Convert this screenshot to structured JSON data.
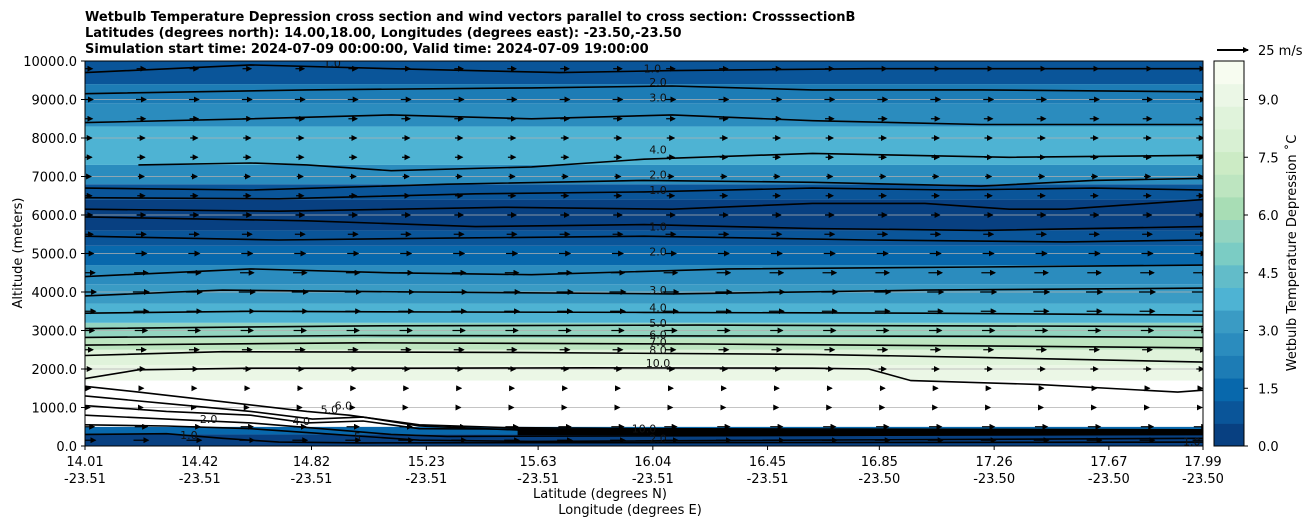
{
  "chart_data": {
    "type": "contour",
    "title_lines": [
      "Wetbulb Temperature Depression cross section and wind vectors parallel to cross section: CrosssectionB",
      "Latitudes (degrees north): 14.00,18.00, Longitudes (degrees east): -23.50,-23.50",
      "Simulation start time: 2024-07-09 00:00:00, Valid time: 2024-07-09 19:00:00"
    ],
    "ylabel": "Altitude (meters)",
    "xlabel_lat": "Latitude (degrees N)",
    "xlabel_lon": "Longitude (degrees E)",
    "ylim": [
      0,
      10000
    ],
    "yticks": [
      "0.0",
      "1000.0",
      "2000.0",
      "3000.0",
      "4000.0",
      "5000.0",
      "6000.0",
      "7000.0",
      "8000.0",
      "9000.0",
      "10000.0"
    ],
    "xticks": [
      {
        "lat": "14.01",
        "lon": "-23.51",
        "frac": 0.0
      },
      {
        "lat": "14.42",
        "lon": "-23.51",
        "frac": 0.1026
      },
      {
        "lat": "14.82",
        "lon": "-23.51",
        "frac": 0.2026
      },
      {
        "lat": "15.23",
        "lon": "-23.51",
        "frac": 0.3053
      },
      {
        "lat": "15.63",
        "lon": "-23.51",
        "frac": 0.4053
      },
      {
        "lat": "16.04",
        "lon": "-23.51",
        "frac": 0.5079
      },
      {
        "lat": "16.45",
        "lon": "-23.51",
        "frac": 0.6105
      },
      {
        "lat": "16.85",
        "lon": "-23.50",
        "frac": 0.7105
      },
      {
        "lat": "17.26",
        "lon": "-23.50",
        "frac": 0.8132
      },
      {
        "lat": "17.67",
        "lon": "-23.50",
        "frac": 0.9158
      },
      {
        "lat": "17.99",
        "lon": "-23.50",
        "frac": 1.0
      }
    ],
    "colorbar": {
      "label": "Wetbulb Temperature Depression ˚C",
      "range": [
        0,
        10
      ],
      "ticks": [
        "0.0",
        "1.5",
        "3.0",
        "4.5",
        "6.0",
        "7.5",
        "9.0"
      ],
      "colors": [
        "#084081",
        "#0a5599",
        "#0868ac",
        "#1d7cb5",
        "#2b8cbe",
        "#3a9bc4",
        "#4eb3d3",
        "#62bcc9",
        "#7bccc4",
        "#93d4c0",
        "#a8ddb5",
        "#bde5c0",
        "#ccebc5",
        "#d8f0d3",
        "#e0f3db",
        "#ebf7e6",
        "#f7fcf0"
      ]
    },
    "quiver_key": {
      "label": "25 m/s",
      "speed": 25
    },
    "contour_labels": [
      {
        "text": "1.0",
        "x": 14.89,
        "z": 9950
      },
      {
        "text": "1.0",
        "x": 16.03,
        "z": 9800
      },
      {
        "text": "2.0",
        "x": 16.05,
        "z": 9450
      },
      {
        "text": "3.0",
        "x": 16.05,
        "z": 9050
      },
      {
        "text": "4.0",
        "x": 16.05,
        "z": 7700
      },
      {
        "text": "2.0",
        "x": 16.05,
        "z": 7050
      },
      {
        "text": "1.0",
        "x": 16.05,
        "z": 6650
      },
      {
        "text": "1.0",
        "x": 16.05,
        "z": 5700
      },
      {
        "text": "2.0",
        "x": 16.05,
        "z": 5050
      },
      {
        "text": "3.0",
        "x": 16.05,
        "z": 4050
      },
      {
        "text": "4.0",
        "x": 16.05,
        "z": 3600
      },
      {
        "text": "5.0",
        "x": 16.05,
        "z": 3200
      },
      {
        "text": "6.0",
        "x": 16.05,
        "z": 2900
      },
      {
        "text": "7.0",
        "x": 16.05,
        "z": 2700
      },
      {
        "text": "8.0",
        "x": 16.05,
        "z": 2500
      },
      {
        "text": "10.0",
        "x": 16.05,
        "z": 2150
      },
      {
        "text": "2.0",
        "x": 14.45,
        "z": 700
      },
      {
        "text": "4.0",
        "x": 14.78,
        "z": 650
      },
      {
        "text": "5.0",
        "x": 14.88,
        "z": 950
      },
      {
        "text": "6.0",
        "x": 14.93,
        "z": 1050
      },
      {
        "text": "5",
        "x": 14.98,
        "z": 250
      },
      {
        "text": "1.0",
        "x": 14.38,
        "z": 280
      },
      {
        "text": "2.0",
        "x": 16.05,
        "z": 200
      },
      {
        "text": "1.0",
        "x": 17.95,
        "z": 120
      },
      {
        "text": "10.0",
        "x": 16.0,
        "z": 450
      }
    ],
    "level_values": [
      1.0,
      2.0,
      3.0,
      4.0,
      5.0,
      6.0,
      7.0,
      8.0,
      10.0
    ],
    "field_layers": [
      {
        "z_top": 300,
        "value": 0.3
      },
      {
        "z_top": 500,
        "value": 1.2
      },
      {
        "z_top": 1700,
        "value": 10.0
      },
      {
        "z_top": 2100,
        "value": 9.2
      },
      {
        "z_top": 2500,
        "value": 8.3
      },
      {
        "z_top": 2800,
        "value": 7.0
      },
      {
        "z_top": 3200,
        "value": 5.3
      },
      {
        "z_top": 3700,
        "value": 3.8
      },
      {
        "z_top": 4200,
        "value": 3.0
      },
      {
        "z_top": 4700,
        "value": 2.4
      },
      {
        "z_top": 5200,
        "value": 1.6
      },
      {
        "z_top": 5600,
        "value": 0.9
      },
      {
        "z_top": 6400,
        "value": 0.3
      },
      {
        "z_top": 6800,
        "value": 1.0
      },
      {
        "z_top": 7300,
        "value": 2.6
      },
      {
        "z_top": 8300,
        "value": 3.6
      },
      {
        "z_top": 8900,
        "value": 2.7
      },
      {
        "z_top": 9400,
        "value": 1.8
      },
      {
        "z_top": 10000,
        "value": 0.7
      }
    ],
    "contour_lines": [
      {
        "level": 10.0,
        "pts": [
          [
            14.01,
            1750
          ],
          [
            14.2,
            1980
          ],
          [
            14.6,
            2020
          ],
          [
            15.2,
            2020
          ],
          [
            15.8,
            2030
          ],
          [
            16.6,
            2020
          ],
          [
            16.8,
            2000
          ],
          [
            16.95,
            1700
          ],
          [
            17.4,
            1600
          ],
          [
            17.9,
            1400
          ],
          [
            17.99,
            1450
          ]
        ]
      },
      {
        "level": 8.0,
        "pts": [
          [
            14.01,
            2350
          ],
          [
            14.5,
            2450
          ],
          [
            15.5,
            2430
          ],
          [
            16.6,
            2380
          ],
          [
            17.2,
            2300
          ],
          [
            17.99,
            2180
          ]
        ]
      },
      {
        "level": 7.0,
        "pts": [
          [
            14.01,
            2620
          ],
          [
            15.0,
            2680
          ],
          [
            16.2,
            2650
          ],
          [
            17.2,
            2600
          ],
          [
            17.99,
            2550
          ]
        ]
      },
      {
        "level": 6.0,
        "pts": [
          [
            14.01,
            2820
          ],
          [
            15.0,
            2870
          ],
          [
            16.2,
            2860
          ],
          [
            17.2,
            2850
          ],
          [
            17.99,
            2820
          ]
        ]
      },
      {
        "level": 5.0,
        "pts": [
          [
            14.01,
            3050
          ],
          [
            15.0,
            3120
          ],
          [
            16.2,
            3140
          ],
          [
            17.2,
            3120
          ],
          [
            17.99,
            3100
          ]
        ]
      },
      {
        "level": 4.0,
        "pts": [
          [
            14.01,
            3450
          ],
          [
            14.6,
            3500
          ],
          [
            15.3,
            3480
          ],
          [
            16.0,
            3470
          ],
          [
            17.0,
            3450
          ],
          [
            17.99,
            3400
          ]
        ]
      },
      {
        "level": 3.0,
        "pts": [
          [
            14.01,
            3900
          ],
          [
            14.5,
            4050
          ],
          [
            15.2,
            4000
          ],
          [
            16.1,
            3950
          ],
          [
            17.0,
            4050
          ],
          [
            17.99,
            4100
          ]
        ]
      },
      {
        "level": 2.0,
        "pts": [
          [
            14.01,
            4400
          ],
          [
            14.6,
            4600
          ],
          [
            15.1,
            4500
          ],
          [
            15.6,
            4450
          ],
          [
            16.3,
            4600
          ],
          [
            17.2,
            4650
          ],
          [
            17.99,
            4700
          ]
        ]
      },
      {
        "level": 1.0,
        "pts": [
          [
            14.01,
            5450
          ],
          [
            14.7,
            5350
          ],
          [
            15.3,
            5400
          ],
          [
            16.0,
            5450
          ],
          [
            16.8,
            5350
          ],
          [
            17.5,
            5300
          ],
          [
            17.99,
            5350
          ]
        ]
      },
      {
        "level": 2.0,
        "pts": [
          [
            14.01,
            5950
          ],
          [
            14.8,
            5850
          ],
          [
            15.4,
            5700
          ],
          [
            16.0,
            5750
          ],
          [
            16.6,
            5650
          ],
          [
            17.2,
            5600
          ],
          [
            17.99,
            5700
          ]
        ]
      },
      {
        "level": 1.0,
        "pts": [
          [
            14.01,
            6150
          ],
          [
            14.7,
            6100
          ],
          [
            15.5,
            6200
          ],
          [
            16.1,
            6150
          ],
          [
            16.6,
            6300
          ],
          [
            17.0,
            6300
          ],
          [
            17.3,
            6150
          ],
          [
            17.5,
            6150
          ],
          [
            17.99,
            6400
          ]
        ]
      },
      {
        "level": 1.0,
        "pts": [
          [
            14.01,
            6450
          ],
          [
            14.7,
            6420
          ],
          [
            15.4,
            6550
          ],
          [
            16.0,
            6600
          ],
          [
            16.6,
            6700
          ],
          [
            17.1,
            6650
          ],
          [
            17.6,
            6700
          ],
          [
            17.99,
            6650
          ]
        ]
      },
      {
        "level": 2.0,
        "pts": [
          [
            14.01,
            6700
          ],
          [
            14.6,
            6650
          ],
          [
            15.3,
            6800
          ],
          [
            16.0,
            6900
          ],
          [
            16.6,
            6850
          ],
          [
            17.2,
            6750
          ],
          [
            17.6,
            6900
          ],
          [
            17.99,
            6950
          ]
        ]
      },
      {
        "level": 4.0,
        "pts": [
          [
            14.2,
            7300
          ],
          [
            14.6,
            7350
          ],
          [
            14.8,
            7300
          ],
          [
            15.1,
            7150
          ],
          [
            15.6,
            7250
          ],
          [
            16.0,
            7450
          ],
          [
            16.6,
            7600
          ],
          [
            17.3,
            7500
          ],
          [
            17.99,
            7550
          ]
        ]
      },
      {
        "level": 3.0,
        "pts": [
          [
            14.01,
            8400
          ],
          [
            14.6,
            8500
          ],
          [
            15.1,
            8600
          ],
          [
            15.6,
            8500
          ],
          [
            16.1,
            8600
          ],
          [
            16.6,
            8450
          ],
          [
            17.2,
            8350
          ],
          [
            17.99,
            8350
          ]
        ]
      },
      {
        "level": 2.0,
        "pts": [
          [
            14.01,
            9150
          ],
          [
            14.8,
            9250
          ],
          [
            15.6,
            9300
          ],
          [
            16.1,
            9350
          ],
          [
            16.6,
            9250
          ],
          [
            17.2,
            9250
          ],
          [
            17.99,
            9200
          ]
        ]
      },
      {
        "level": 1.0,
        "pts": [
          [
            14.01,
            9700
          ],
          [
            14.6,
            9900
          ],
          [
            15.1,
            9800
          ],
          [
            15.7,
            9700
          ],
          [
            16.1,
            9750
          ],
          [
            16.8,
            9800
          ],
          [
            17.99,
            9800
          ]
        ]
      },
      {
        "level": 10.0,
        "pts": [
          [
            14.01,
            1550
          ],
          [
            14.2,
            1400
          ],
          [
            14.5,
            1150
          ],
          [
            14.8,
            900
          ],
          [
            14.95,
            800
          ],
          [
            15.2,
            550
          ],
          [
            15.5,
            480
          ],
          [
            16.0,
            450
          ],
          [
            17.99,
            420
          ]
        ]
      },
      {
        "level": 8.0,
        "pts": [
          [
            14.01,
            1300
          ],
          [
            14.3,
            1100
          ],
          [
            14.6,
            900
          ],
          [
            14.82,
            700
          ],
          [
            15.0,
            750
          ],
          [
            15.2,
            520
          ],
          [
            15.6,
            400
          ],
          [
            17.99,
            380
          ]
        ]
      },
      {
        "level": 6.0,
        "pts": [
          [
            14.01,
            1050
          ],
          [
            14.3,
            900
          ],
          [
            14.6,
            800
          ],
          [
            14.8,
            600
          ],
          [
            15.0,
            650
          ],
          [
            15.2,
            450
          ],
          [
            17.99,
            350
          ]
        ]
      },
      {
        "level": 4.0,
        "pts": [
          [
            14.01,
            800
          ],
          [
            14.3,
            700
          ],
          [
            14.6,
            600
          ],
          [
            14.9,
            420
          ],
          [
            15.1,
            300
          ],
          [
            15.3,
            250
          ],
          [
            17.99,
            300
          ]
        ]
      },
      {
        "level": 2.0,
        "pts": [
          [
            14.01,
            550
          ],
          [
            14.3,
            520
          ],
          [
            14.6,
            450
          ],
          [
            14.9,
            300
          ],
          [
            15.2,
            150
          ],
          [
            15.6,
            120
          ],
          [
            17.99,
            200
          ]
        ]
      },
      {
        "level": 1.0,
        "pts": [
          [
            14.01,
            300
          ],
          [
            14.3,
            320
          ],
          [
            14.5,
            200
          ],
          [
            14.7,
            100
          ],
          [
            15.0,
            80
          ],
          [
            17.99,
            100
          ]
        ]
      }
    ],
    "wind_u_levels": [
      {
        "z": 9800,
        "u": 7
      },
      {
        "z": 9000,
        "u": 8
      },
      {
        "z": 8500,
        "u": 7
      },
      {
        "z": 8000,
        "u": 6
      },
      {
        "z": 7500,
        "u": 6
      },
      {
        "z": 7000,
        "u": 5
      },
      {
        "z": 6500,
        "u": 6
      },
      {
        "z": 6000,
        "u": 7
      },
      {
        "z": 5500,
        "u": 8
      },
      {
        "z": 5000,
        "u": 9
      },
      {
        "z": 4500,
        "u": 11
      },
      {
        "z": 4000,
        "u": 13
      },
      {
        "z": 3500,
        "u": 12
      },
      {
        "z": 3000,
        "u": 10
      },
      {
        "z": 2500,
        "u": 8
      },
      {
        "z": 2000,
        "u": 6
      },
      {
        "z": 1500,
        "u": 4
      },
      {
        "z": 1000,
        "u": 3
      },
      {
        "z": 500,
        "u": 10
      },
      {
        "z": 150,
        "u": 12
      }
    ]
  }
}
